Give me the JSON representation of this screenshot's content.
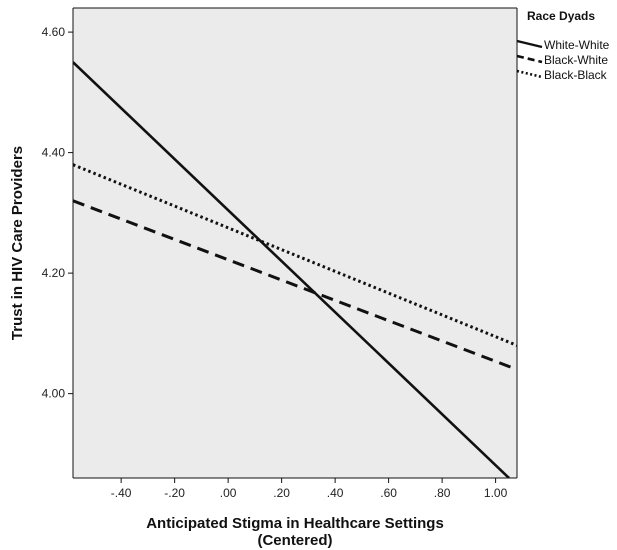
{
  "chart_data": {
    "type": "line",
    "xlabel_line1": "Anticipated Stigma in Healthcare Settings",
    "xlabel_line2": "(Centered)",
    "ylabel": "Trust in HIV Care Providers",
    "xlim": [
      -0.58,
      1.08
    ],
    "ylim": [
      3.86,
      4.64
    ],
    "x_ticks": [
      -0.4,
      -0.2,
      0.0,
      0.2,
      0.4,
      0.6,
      0.8,
      1.0
    ],
    "x_tick_labels": [
      "-.40",
      "-.20",
      ".00",
      ".20",
      ".40",
      ".60",
      ".80",
      "1.00"
    ],
    "y_ticks": [
      4.0,
      4.2,
      4.4,
      4.6
    ],
    "y_tick_labels": [
      "4.00",
      "4.20",
      "4.40",
      "4.60"
    ],
    "grid": false,
    "legend": {
      "title": "Race Dyads",
      "placement": "right"
    },
    "series": [
      {
        "name": "White-White",
        "style": "solid",
        "x": [
          -0.58,
          1.05
        ],
        "y": [
          4.55,
          3.86
        ]
      },
      {
        "name": "Black-White",
        "style": "dashed",
        "x": [
          -0.58,
          1.08
        ],
        "y": [
          4.32,
          4.04
        ]
      },
      {
        "name": "Black-Black",
        "style": "dotted",
        "x": [
          -0.58,
          1.08
        ],
        "y": [
          4.38,
          4.08
        ]
      }
    ],
    "colors": {
      "plot_bg": "#ebebeb",
      "line": "#111111"
    }
  }
}
